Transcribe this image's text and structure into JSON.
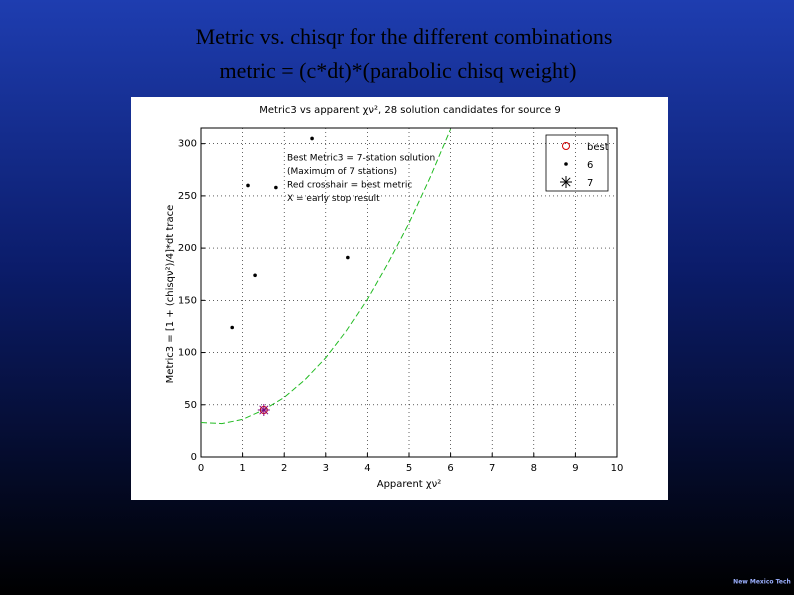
{
  "slide": {
    "title_line1": "Metric vs. chisqr for the different combinations",
    "title_line2": "metric = (c*dt)*(parabolic chisq weight)",
    "logo": "New Mexico Tech"
  },
  "chart_data": {
    "type": "scatter",
    "title": "Metric3 vs apparent χν², 28 solution candidates for source 9",
    "xlabel": "Apparent χν²",
    "ylabel": "Metric3 = [1 + (chisqν²)/4]*dt trace",
    "xlim": [
      0,
      10
    ],
    "ylim": [
      0,
      315
    ],
    "xticks": [
      0,
      1,
      2,
      3,
      4,
      5,
      6,
      7,
      8,
      9,
      10
    ],
    "yticks": [
      0,
      50,
      100,
      150,
      200,
      250,
      300
    ],
    "grid": true,
    "annotations": [
      "Best Metric3 = 7-station solution",
      "(Maximum of 7 stations)",
      "Red crosshair = best metric",
      "X = early stop result"
    ],
    "series": [
      {
        "name": "best",
        "color": "#d00000",
        "marker": "circle",
        "x": [
          1.51
        ],
        "values": [
          45
        ]
      },
      {
        "name": "6",
        "color": "#000000",
        "marker": "dot",
        "x": [
          0.75,
          1.13,
          1.3,
          1.8,
          2.67,
          3.53
        ],
        "values": [
          124,
          260,
          174,
          258,
          305,
          191
        ]
      },
      {
        "name": "7",
        "color": "#800080",
        "marker": "asterisk",
        "x": [
          1.51
        ],
        "values": [
          45
        ]
      }
    ],
    "fit_curve": {
      "color": "#22bb22",
      "x": [
        0,
        0.5,
        1,
        1.5,
        2,
        2.5,
        3,
        3.5,
        4,
        4.5,
        5,
        5.5,
        6
      ],
      "values": [
        33,
        32,
        36,
        45,
        57,
        74,
        95,
        121,
        151,
        186,
        224,
        267,
        314
      ]
    },
    "legend": "upper right"
  }
}
